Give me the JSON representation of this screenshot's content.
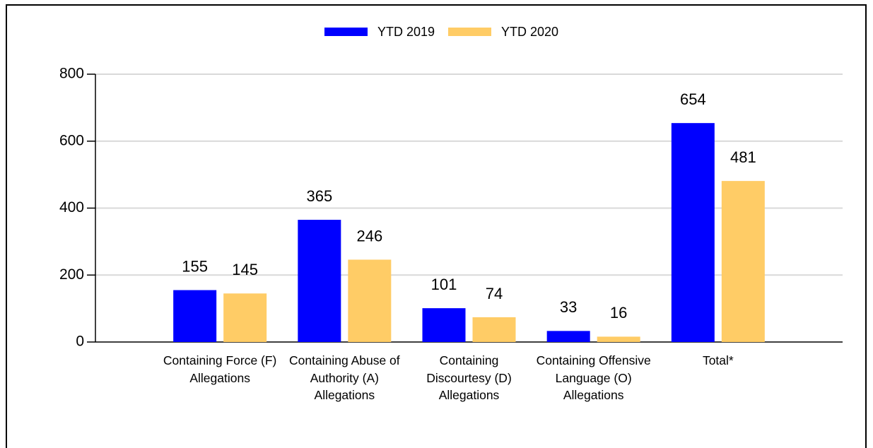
{
  "chart_data": {
    "type": "bar",
    "categories": [
      "Containing Force (F) Allegations",
      "Containing Abuse of Authority (A) Allegations",
      "Containing Discourtesy (D) Allegations",
      "Containing Offensive Language (O) Allegations",
      "Total*"
    ],
    "series": [
      {
        "name": "YTD 2019",
        "color": "#0000ff",
        "values": [
          155,
          365,
          101,
          33,
          654
        ]
      },
      {
        "name": "YTD 2020",
        "color": "#ffcc66",
        "values": [
          145,
          246,
          74,
          16,
          481
        ]
      }
    ],
    "ylim": [
      0,
      800
    ],
    "yticks": [
      0,
      200,
      400,
      600,
      800
    ],
    "grid": true,
    "legend": "top"
  }
}
